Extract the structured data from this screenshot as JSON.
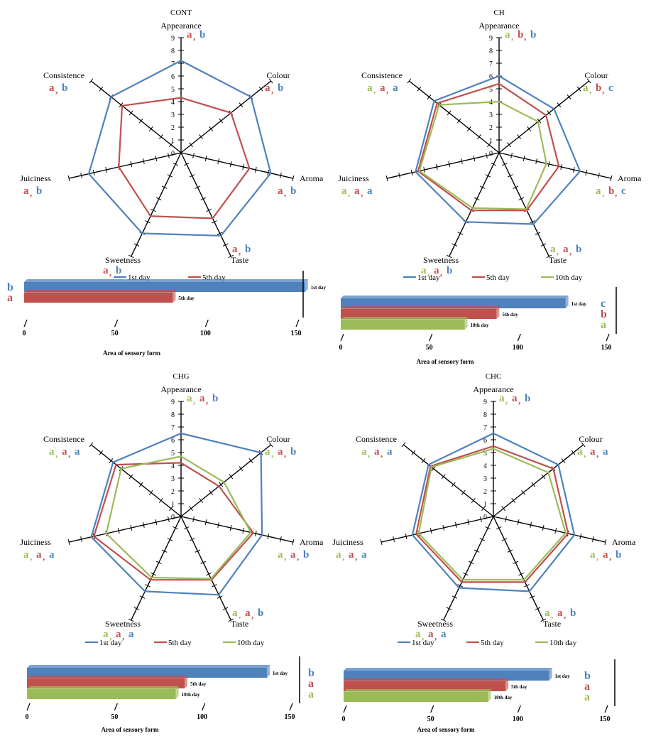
{
  "colors": {
    "day1": "#4f81bd",
    "day5": "#c0504d",
    "day10": "#9bbb59",
    "axis": "#000000"
  },
  "radar_scale": {
    "min": 0,
    "max": 9,
    "ticks": [
      "0",
      "1",
      "2",
      "3",
      "4",
      "5",
      "6",
      "7",
      "8",
      "9"
    ]
  },
  "bar_scale": {
    "ticks": [
      "0",
      "50",
      "100",
      "150"
    ],
    "xlabel": "Area of sensory form"
  },
  "chart_data": [
    {
      "type": "radar",
      "title": "CONT",
      "axes": [
        "Appearance",
        "Colour",
        "Aroma",
        "Taste",
        "Sweetness",
        "Juiciness",
        "Consistence"
      ],
      "series": [
        {
          "name": "1st day",
          "color_key": "day1",
          "values": [
            7.2,
            7.0,
            7.2,
            7.2,
            7.0,
            7.4,
            7.0
          ]
        },
        {
          "name": "5th day",
          "color_key": "day5",
          "values": [
            4.3,
            5.0,
            5.5,
            5.7,
            5.5,
            5.0,
            5.9
          ]
        }
      ],
      "letters": {
        "Appearance": [
          [
            "a",
            "day5"
          ],
          [
            "b",
            "day1"
          ]
        ],
        "Colour": [
          [
            "a",
            "day5"
          ],
          [
            "b",
            "day1"
          ]
        ],
        "Aroma": [
          [
            "a",
            "day5"
          ],
          [
            "b",
            "day1"
          ]
        ],
        "Taste": [
          [
            "a",
            "day5"
          ],
          [
            "b",
            "day1"
          ]
        ],
        "Sweetness": [
          [
            "a",
            "day5"
          ],
          [
            "b",
            "day1"
          ]
        ],
        "Juiciness": [
          [
            "a",
            "day5"
          ],
          [
            "b",
            "day1"
          ]
        ],
        "Consistence": [
          [
            "a",
            "day5"
          ],
          [
            "b",
            "day1"
          ]
        ]
      },
      "bars": {
        "categories": [
          "1st day",
          "5th day"
        ],
        "values": [
          155,
          82
        ],
        "letters": [
          [
            "b",
            "day1"
          ],
          [
            "a",
            "day5"
          ]
        ]
      }
    },
    {
      "type": "radar",
      "title": "CH",
      "axes": [
        "Appearance",
        "Colour",
        "Aroma",
        "Taste",
        "Sweetness",
        "Juiciness",
        "Consistence"
      ],
      "series": [
        {
          "name": "1st day",
          "color_key": "day1",
          "values": [
            6.0,
            5.5,
            6.5,
            6.2,
            6.0,
            6.7,
            6.5
          ]
        },
        {
          "name": "5th day",
          "color_key": "day5",
          "values": [
            5.4,
            4.7,
            4.8,
            5.0,
            5.0,
            6.5,
            6.2
          ]
        },
        {
          "name": "10th day",
          "color_key": "day10",
          "values": [
            4.0,
            3.9,
            3.8,
            4.9,
            4.8,
            6.4,
            6.0
          ]
        }
      ],
      "letters": {
        "Appearance": [
          [
            "a",
            "day10"
          ],
          [
            "b",
            "day5"
          ],
          [
            "b",
            "day1"
          ]
        ],
        "Colour": [
          [
            "a",
            "day10"
          ],
          [
            "b",
            "day5"
          ],
          [
            "c",
            "day1"
          ]
        ],
        "Aroma": [
          [
            "a",
            "day10"
          ],
          [
            "b",
            "day5"
          ],
          [
            "c",
            "day1"
          ]
        ],
        "Taste": [
          [
            "a",
            "day10"
          ],
          [
            "a",
            "day5"
          ],
          [
            "b",
            "day1"
          ]
        ],
        "Sweetness": [
          [
            "a",
            "day10"
          ],
          [
            "a",
            "day5"
          ],
          [
            "b",
            "day1"
          ]
        ],
        "Juiciness": [
          [
            "a",
            "day10"
          ],
          [
            "a",
            "day5"
          ],
          [
            "a",
            "day1"
          ]
        ],
        "Consistence": [
          [
            "a",
            "day10"
          ],
          [
            "a",
            "day5"
          ],
          [
            "a",
            "day1"
          ]
        ]
      },
      "bars": {
        "categories": [
          "1st day",
          "5th day",
          "10th day"
        ],
        "values": [
          127,
          88,
          70
        ],
        "letters": [
          [
            "c",
            "day1"
          ],
          [
            "b",
            "day5"
          ],
          [
            "a",
            "day10"
          ]
        ]
      }
    },
    {
      "type": "radar",
      "title": "CHG",
      "axes": [
        "Appearance",
        "Colour",
        "Aroma",
        "Taste",
        "Sweetness",
        "Juiciness",
        "Consistence"
      ],
      "series": [
        {
          "name": "1st day",
          "color_key": "day1",
          "values": [
            6.5,
            8.0,
            6.5,
            6.8,
            6.5,
            7.2,
            6.8
          ]
        },
        {
          "name": "5th day",
          "color_key": "day5",
          "values": [
            4.2,
            3.8,
            5.8,
            5.5,
            5.5,
            7.0,
            6.5
          ]
        },
        {
          "name": "10th day",
          "color_key": "day10",
          "values": [
            4.7,
            4.3,
            5.6,
            5.4,
            5.3,
            6.0,
            6.0
          ]
        }
      ],
      "letters": {
        "Appearance": [
          [
            "a",
            "day10"
          ],
          [
            "a",
            "day5"
          ],
          [
            "b",
            "day1"
          ]
        ],
        "Colour": [
          [
            "a",
            "day10"
          ],
          [
            "a",
            "day5"
          ],
          [
            "b",
            "day1"
          ]
        ],
        "Aroma": [
          [
            "a",
            "day10"
          ],
          [
            "a",
            "day5"
          ],
          [
            "b",
            "day1"
          ]
        ],
        "Taste": [
          [
            "a",
            "day10"
          ],
          [
            "a",
            "day5"
          ],
          [
            "b",
            "day1"
          ]
        ],
        "Sweetness": [
          [
            "a",
            "day10"
          ],
          [
            "a",
            "day5"
          ],
          [
            "a",
            "day1"
          ]
        ],
        "Juiciness": [
          [
            "a",
            "day10"
          ],
          [
            "a",
            "day5"
          ],
          [
            "a",
            "day1"
          ]
        ],
        "Consistence": [
          [
            "a",
            "day10"
          ],
          [
            "a",
            "day5"
          ],
          [
            "a",
            "day1"
          ]
        ]
      },
      "bars": {
        "categories": [
          "1st day",
          "5th day",
          "10th day"
        ],
        "values": [
          137,
          90,
          85
        ],
        "letters": [
          [
            "b",
            "day1"
          ],
          [
            "a",
            "day5"
          ],
          [
            "a",
            "day10"
          ]
        ]
      }
    },
    {
      "type": "radar",
      "title": "CHC",
      "axes": [
        "Appearance",
        "Colour",
        "Aroma",
        "Taste",
        "Sweetness",
        "Juiciness",
        "Consistence"
      ],
      "series": [
        {
          "name": "1st day",
          "color_key": "day1",
          "values": [
            6.5,
            6.5,
            6.5,
            6.5,
            6.2,
            6.5,
            6.5
          ]
        },
        {
          "name": "5th day",
          "color_key": "day5",
          "values": [
            5.5,
            6.0,
            6.0,
            5.7,
            5.7,
            6.2,
            6.3
          ]
        },
        {
          "name": "10th day",
          "color_key": "day10",
          "values": [
            5.3,
            5.5,
            5.8,
            5.5,
            5.5,
            6.0,
            6.2
          ]
        }
      ],
      "letters": {
        "Appearance": [
          [
            "a",
            "day10"
          ],
          [
            "a",
            "day5"
          ],
          [
            "b",
            "day1"
          ]
        ],
        "Colour": [
          [
            "a",
            "day10"
          ],
          [
            "a",
            "day5"
          ],
          [
            "a",
            "day1"
          ]
        ],
        "Aroma": [
          [
            "a",
            "day10"
          ],
          [
            "a",
            "day5"
          ],
          [
            "b",
            "day1"
          ]
        ],
        "Taste": [
          [
            "a",
            "day10"
          ],
          [
            "a",
            "day5"
          ],
          [
            "b",
            "day1"
          ]
        ],
        "Sweetness": [
          [
            "a",
            "day10"
          ],
          [
            "a",
            "day5"
          ],
          [
            "a",
            "day1"
          ]
        ],
        "Juiciness": [
          [
            "a",
            "day10"
          ],
          [
            "a",
            "day5"
          ],
          [
            "a",
            "day1"
          ]
        ],
        "Consistence": [
          [
            "a",
            "day10"
          ],
          [
            "a",
            "day5"
          ],
          [
            "a",
            "day1"
          ]
        ]
      },
      "bars": {
        "categories": [
          "1st day",
          "5th day",
          "10th day"
        ],
        "values": [
          118,
          93,
          83
        ],
        "letters": [
          [
            "b",
            "day1"
          ],
          [
            "a",
            "day5"
          ],
          [
            "a",
            "day10"
          ]
        ]
      }
    }
  ]
}
